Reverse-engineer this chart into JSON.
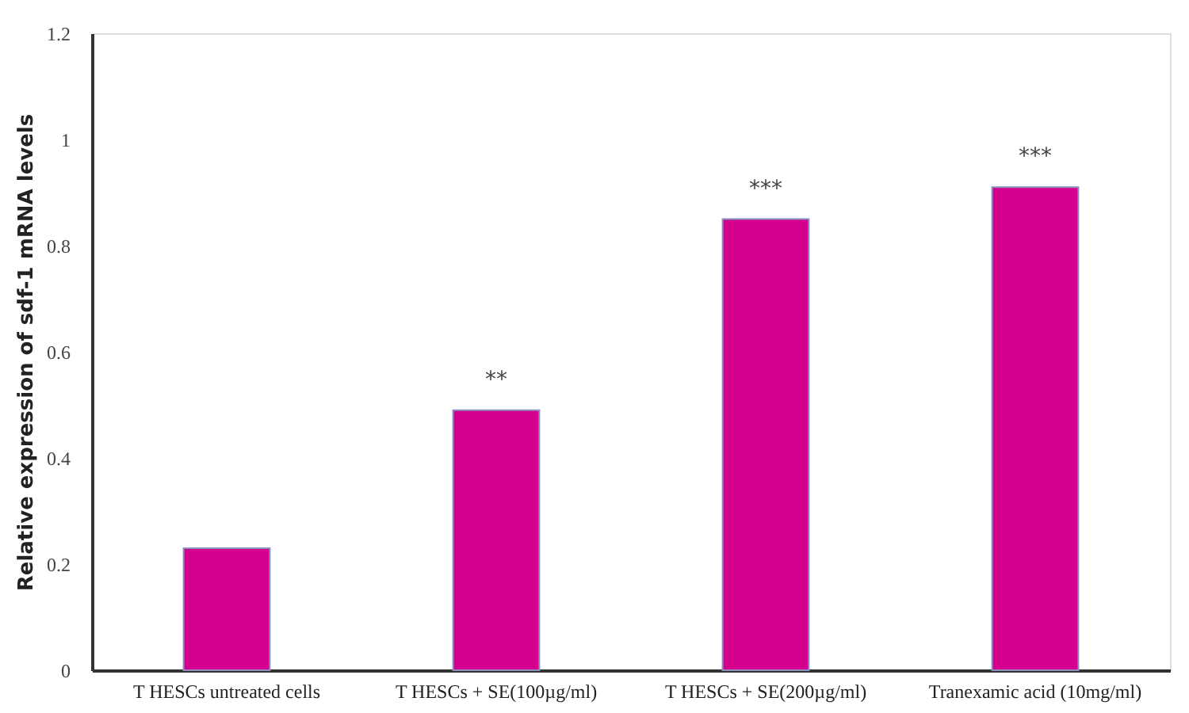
{
  "chart_data": {
    "type": "bar",
    "ylabel": "Relative expression of sdf-1 mRNA levels",
    "categories": [
      "T HESCs untreated cells",
      "T HESCs + SE(100µg/ml)",
      "T HESCs + SE(200µg/ml)",
      "Tranexamic acid (10mg/ml)"
    ],
    "values": [
      0.23,
      0.49,
      0.85,
      0.91
    ],
    "color": "#d6008f",
    "ylim": [
      0,
      1.2
    ],
    "yticks": [
      0,
      0.2,
      0.4,
      0.6,
      0.8,
      1,
      1.2
    ],
    "grid": false,
    "annotations": [
      {
        "text": "**",
        "x": "T HESCs + SE(100µg/ml)",
        "y": 0.49
      },
      {
        "text": "***",
        "x": "T HESCs + SE(200µg/ml)",
        "y": 0.85
      },
      {
        "text": "***",
        "x": "Tranexamic acid (10mg/ml)",
        "y": 0.91
      }
    ]
  }
}
